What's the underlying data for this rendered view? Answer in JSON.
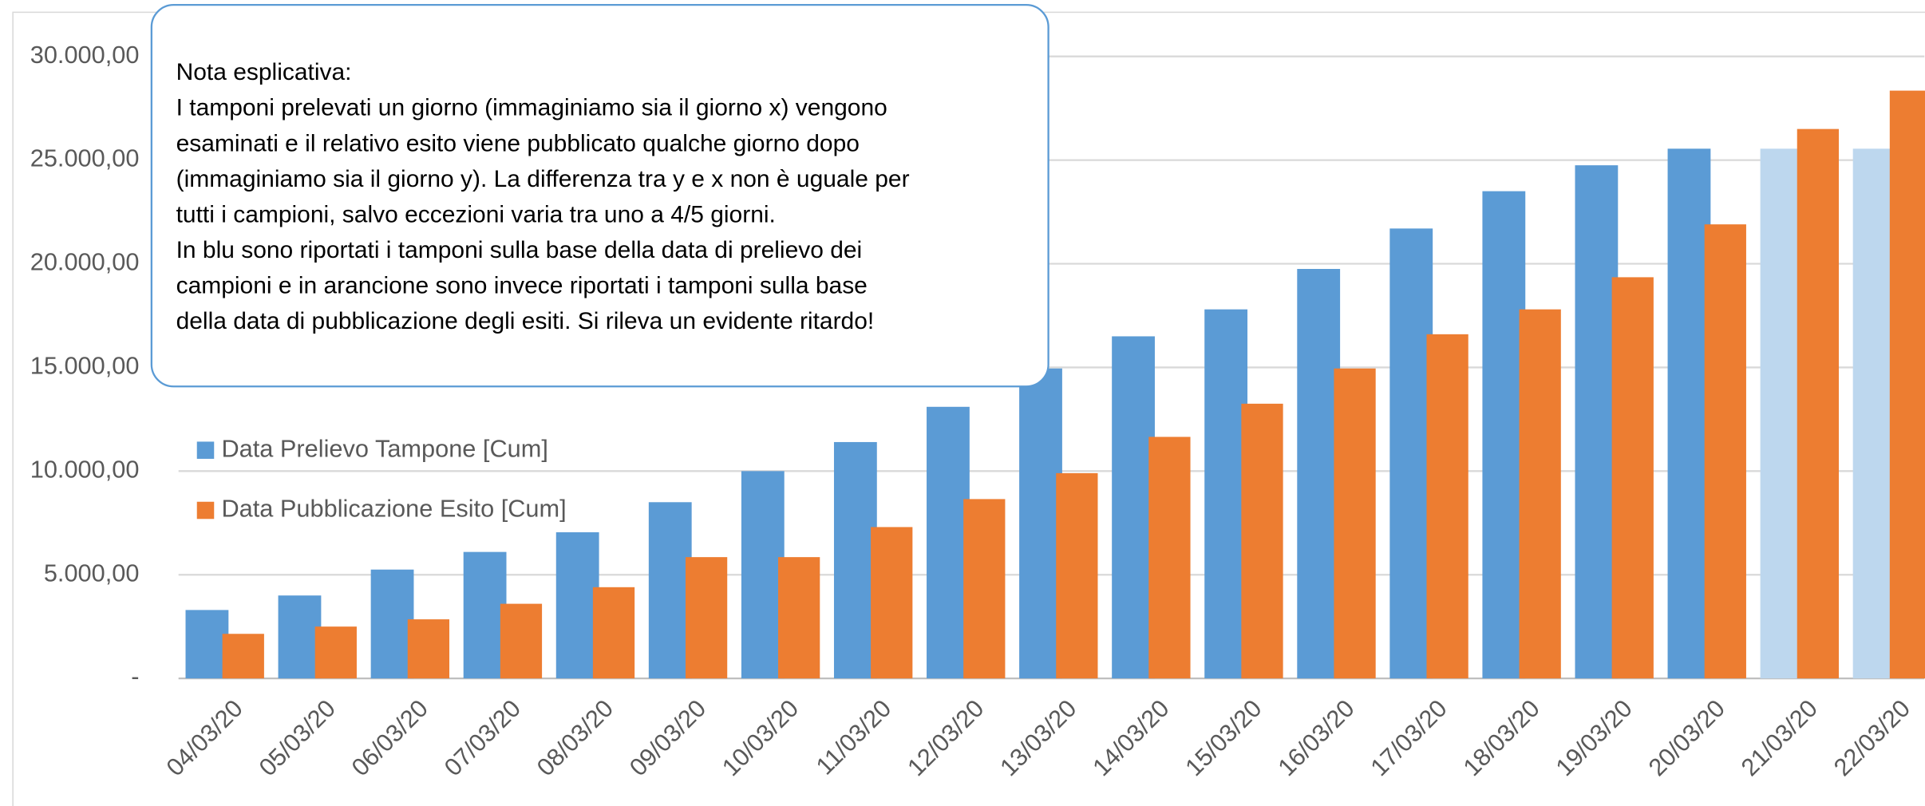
{
  "chart_data": {
    "type": "bar",
    "categories": [
      "04/03/20",
      "05/03/20",
      "06/03/20",
      "07/03/20",
      "08/03/20",
      "09/03/20",
      "10/03/20",
      "11/03/20",
      "12/03/20",
      "13/03/20",
      "14/03/20",
      "15/03/20",
      "16/03/20",
      "17/03/20",
      "18/03/20",
      "19/03/20",
      "20/03/20",
      "21/03/20",
      "22/03/20"
    ],
    "series": [
      {
        "name": "Data Prelievo Tampone [Cum]",
        "color": "#5b9bd5",
        "colors": [
          "#5b9bd5",
          "#5b9bd5",
          "#5b9bd5",
          "#5b9bd5",
          "#5b9bd5",
          "#5b9bd5",
          "#5b9bd5",
          "#5b9bd5",
          "#5b9bd5",
          "#5b9bd5",
          "#5b9bd5",
          "#5b9bd5",
          "#5b9bd5",
          "#5b9bd5",
          "#5b9bd5",
          "#5b9bd5",
          "#5b9bd5",
          "#bdd7ee",
          "#bdd7ee"
        ],
        "values": [
          3300,
          4000,
          5250,
          6100,
          7050,
          8500,
          10000,
          11400,
          13100,
          14950,
          16500,
          17800,
          19750,
          21700,
          23500,
          24750,
          25550,
          25550,
          25550
        ]
      },
      {
        "name": "Data Pubblicazione Esito [Cum]",
        "color": "#ed7d31",
        "values": [
          2150,
          2500,
          2850,
          3600,
          4400,
          5850,
          5850,
          7300,
          8650,
          9900,
          11650,
          13250,
          14950,
          16600,
          17800,
          19350,
          21900,
          26500,
          28350
        ]
      }
    ],
    "ylim": [
      0,
      30000
    ],
    "yticks": [
      {
        "value": 0,
        "label": "-"
      },
      {
        "value": 5000,
        "label": "5.000,00"
      },
      {
        "value": 10000,
        "label": "10.000,00"
      },
      {
        "value": 15000,
        "label": "15.000,00"
      },
      {
        "value": 20000,
        "label": "20.000,00"
      },
      {
        "value": 25000,
        "label": "25.000,00"
      },
      {
        "value": 30000,
        "label": "30.000,00"
      }
    ],
    "grid": true,
    "legend": "left",
    "annotation": [
      "Nota esplicativa:",
      "I tamponi prelevati un giorno (immaginiamo sia il giorno x) vengono",
      "esaminati e il relativo esito viene pubblicato qualche giorno dopo",
      "(immaginiamo sia il giorno y). La differenza tra y e x non è uguale per",
      "tutti i campioni, salvo eccezioni varia tra uno a 4/5 giorni.",
      "In blu sono riportati i tamponi sulla base della data di prelievo dei",
      "campioni e in arancione sono invece riportati i tamponi sulla base",
      "della data di pubblicazione degli esiti. Si rileva un evidente ritardo!"
    ]
  }
}
